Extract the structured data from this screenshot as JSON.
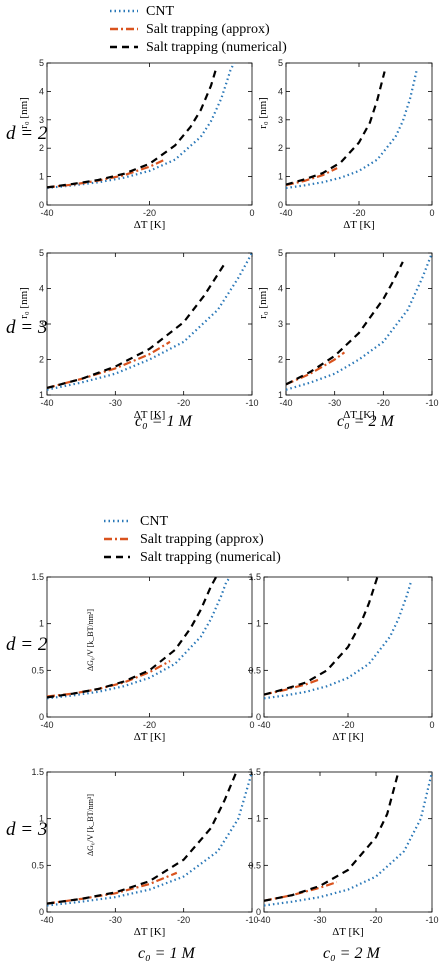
{
  "colors": {
    "CNT": "#2a78b8",
    "approx": "#d9531e",
    "numerical": "#000000"
  },
  "figure_top": {
    "legend": [
      "CNT",
      "Salt trapping (approx)",
      "Salt trapping (numerical)"
    ],
    "row_labels": [
      "d = 2",
      "d = 3"
    ],
    "col_labels": [
      "c₀ = 1 M",
      "c₀ = 2 M"
    ]
  },
  "figure_bottom": {
    "legend": [
      "CNT",
      "Salt trapping (approx)",
      "Salt trapping (numerical)"
    ],
    "row_labels": [
      "d = 2",
      "d = 3"
    ],
    "col_labels": [
      "c₀ = 1 M",
      "c₀ = 2 M"
    ]
  },
  "chart_data": [
    {
      "type": "line",
      "figure": "top",
      "row": "d = 2",
      "column": "c0 = 1 M",
      "xlabel": "ΔT [K]",
      "ylabel": "r₀ [nm]",
      "xlim": [
        -40,
        0
      ],
      "ylim": [
        0,
        5
      ],
      "xticks": [
        "-40",
        "-20",
        "0"
      ],
      "yticks": [
        "0",
        "1",
        "2",
        "3",
        "4",
        "5"
      ],
      "series": [
        {
          "name": "CNT",
          "x": [
            -40,
            -35,
            -30,
            -25,
            -20,
            -15,
            -10,
            -8,
            -6,
            -5,
            -4.2,
            -3.5
          ],
          "y": [
            0.6,
            0.69,
            0.8,
            0.96,
            1.2,
            1.6,
            2.4,
            2.95,
            3.75,
            4.3,
            4.75,
            5.0
          ]
        },
        {
          "name": "Salt trapping (approx)",
          "x": [
            -40,
            -35,
            -30,
            -25,
            -20,
            -17
          ],
          "y": [
            0.62,
            0.72,
            0.86,
            1.05,
            1.35,
            1.6
          ]
        },
        {
          "name": "Salt trapping (numerical)",
          "x": [
            -40,
            -35,
            -30,
            -25,
            -20,
            -15,
            -12,
            -10,
            -8,
            -7
          ],
          "y": [
            0.62,
            0.74,
            0.88,
            1.1,
            1.45,
            2.1,
            2.75,
            3.35,
            4.2,
            4.8
          ]
        }
      ]
    },
    {
      "type": "line",
      "figure": "top",
      "row": "d = 2",
      "column": "c0 = 2 M",
      "xlabel": "ΔT [K]",
      "ylabel": "r₀ [nm]",
      "xlim": [
        -40,
        0
      ],
      "ylim": [
        0,
        5
      ],
      "xticks": [
        "-40",
        "-20",
        "0"
      ],
      "yticks": [
        "0",
        "1",
        "2",
        "3",
        "4",
        "5"
      ],
      "series": [
        {
          "name": "CNT",
          "x": [
            -40,
            -35,
            -30,
            -25,
            -20,
            -15,
            -10,
            -8,
            -6,
            -5,
            -4.2
          ],
          "y": [
            0.6,
            0.69,
            0.8,
            0.96,
            1.2,
            1.6,
            2.4,
            2.95,
            3.75,
            4.3,
            4.75
          ]
        },
        {
          "name": "Salt trapping (approx)",
          "x": [
            -40,
            -35,
            -30,
            -26
          ],
          "y": [
            0.7,
            0.85,
            1.05,
            1.3
          ]
        },
        {
          "name": "Salt trapping (numerical)",
          "x": [
            -40,
            -35,
            -30,
            -25,
            -20,
            -17,
            -15,
            -13
          ],
          "y": [
            0.72,
            0.9,
            1.12,
            1.5,
            2.2,
            2.9,
            3.7,
            4.7
          ]
        }
      ]
    },
    {
      "type": "line",
      "figure": "top",
      "row": "d = 3",
      "column": "c0 = 1 M",
      "xlabel": "ΔT [K]",
      "ylabel": "r₀ [nm]",
      "xlim": [
        -40,
        -10
      ],
      "ylim": [
        1,
        5
      ],
      "xticks": [
        "-40",
        "-30",
        "-20",
        "-10"
      ],
      "yticks": [
        "1",
        "2",
        "3",
        "4",
        "5"
      ],
      "series": [
        {
          "name": "CNT",
          "x": [
            -40,
            -35,
            -30,
            -25,
            -20,
            -15,
            -12,
            -10
          ],
          "y": [
            1.15,
            1.35,
            1.6,
            2.0,
            2.5,
            3.4,
            4.3,
            5.0
          ]
        },
        {
          "name": "Salt trapping (approx)",
          "x": [
            -40,
            -35,
            -30,
            -25,
            -22
          ],
          "y": [
            1.2,
            1.45,
            1.75,
            2.15,
            2.5
          ]
        },
        {
          "name": "Salt trapping (numerical)",
          "x": [
            -40,
            -35,
            -30,
            -25,
            -20,
            -17,
            -14
          ],
          "y": [
            1.2,
            1.45,
            1.8,
            2.3,
            3.05,
            3.8,
            4.7
          ]
        }
      ]
    },
    {
      "type": "line",
      "figure": "top",
      "row": "d = 3",
      "column": "c0 = 2 M",
      "xlabel": "ΔT [K]",
      "ylabel": "r₀ [nm]",
      "xlim": [
        -40,
        -10
      ],
      "ylim": [
        1,
        5
      ],
      "xticks": [
        "-40",
        "-30",
        "-20",
        "-10"
      ],
      "yticks": [
        "1",
        "2",
        "3",
        "4",
        "5"
      ],
      "series": [
        {
          "name": "CNT",
          "x": [
            -40,
            -35,
            -30,
            -25,
            -20,
            -15,
            -12,
            -10
          ],
          "y": [
            1.15,
            1.35,
            1.6,
            2.0,
            2.5,
            3.4,
            4.3,
            5.0
          ]
        },
        {
          "name": "Salt trapping (approx)",
          "x": [
            -40,
            -35,
            -30,
            -28
          ],
          "y": [
            1.3,
            1.6,
            2.0,
            2.2
          ]
        },
        {
          "name": "Salt trapping (numerical)",
          "x": [
            -40,
            -35,
            -30,
            -25,
            -20,
            -18,
            -16
          ],
          "y": [
            1.3,
            1.65,
            2.1,
            2.75,
            3.7,
            4.2,
            4.75
          ]
        }
      ]
    },
    {
      "type": "line",
      "figure": "bottom",
      "row": "d = 2",
      "column": "c0 = 1 M",
      "xlabel": "ΔT [K]",
      "ylabel": "ΔG₀ / V [k_B T / nm²]",
      "xlim": [
        -40,
        0
      ],
      "ylim": [
        0,
        1.5
      ],
      "xticks": [
        "-40",
        "-20",
        "0"
      ],
      "yticks": [
        "0",
        "0.5",
        "1",
        "1.5"
      ],
      "series": [
        {
          "name": "CNT",
          "x": [
            -40,
            -35,
            -30,
            -25,
            -20,
            -15,
            -10,
            -8,
            -6,
            -5,
            -4.2
          ],
          "y": [
            0.2,
            0.23,
            0.27,
            0.33,
            0.42,
            0.57,
            0.86,
            1.05,
            1.3,
            1.45,
            1.5
          ]
        },
        {
          "name": "Salt trapping (approx)",
          "x": [
            -40,
            -35,
            -30,
            -25,
            -20,
            -16
          ],
          "y": [
            0.22,
            0.25,
            0.3,
            0.37,
            0.48,
            0.6
          ]
        },
        {
          "name": "Salt trapping (numerical)",
          "x": [
            -40,
            -35,
            -30,
            -25,
            -20,
            -15,
            -12,
            -10,
            -8,
            -7
          ],
          "y": [
            0.21,
            0.25,
            0.3,
            0.38,
            0.5,
            0.72,
            0.95,
            1.15,
            1.4,
            1.5
          ]
        }
      ]
    },
    {
      "type": "line",
      "figure": "bottom",
      "row": "d = 2",
      "column": "c0 = 2 M",
      "xlabel": "ΔT [K]",
      "ylabel": "",
      "xlim": [
        -40,
        0
      ],
      "ylim": [
        0,
        1.5
      ],
      "xticks": [
        "-40",
        "-20",
        "0"
      ],
      "yticks": [
        "0",
        "0.5",
        "1",
        "1.5"
      ],
      "series": [
        {
          "name": "CNT",
          "x": [
            -40,
            -35,
            -30,
            -25,
            -20,
            -15,
            -10,
            -8,
            -6,
            -5
          ],
          "y": [
            0.2,
            0.23,
            0.27,
            0.33,
            0.42,
            0.57,
            0.86,
            1.05,
            1.3,
            1.45
          ]
        },
        {
          "name": "Salt trapping (approx)",
          "x": [
            -40,
            -35,
            -30,
            -27
          ],
          "y": [
            0.24,
            0.29,
            0.35,
            0.4
          ]
        },
        {
          "name": "Salt trapping (numerical)",
          "x": [
            -40,
            -35,
            -30,
            -25,
            -20,
            -17,
            -15,
            -13
          ],
          "y": [
            0.24,
            0.3,
            0.37,
            0.5,
            0.75,
            1.0,
            1.22,
            1.5
          ]
        }
      ]
    },
    {
      "type": "line",
      "figure": "bottom",
      "row": "d = 3",
      "column": "c0 = 1 M",
      "xlabel": "ΔT [K]",
      "ylabel": "ΔG₀ / V [k_B T / nm³]",
      "xlim": [
        -40,
        -10
      ],
      "ylim": [
        0,
        1.5
      ],
      "xticks": [
        "-40",
        "-30",
        "-20",
        "-10"
      ],
      "yticks": [
        "0",
        "0.5",
        "1",
        "1.5"
      ],
      "series": [
        {
          "name": "CNT",
          "x": [
            -40,
            -35,
            -30,
            -25,
            -20,
            -15,
            -12,
            -10
          ],
          "y": [
            0.07,
            0.11,
            0.16,
            0.24,
            0.38,
            0.65,
            1.0,
            1.5
          ]
        },
        {
          "name": "Salt trapping (approx)",
          "x": [
            -40,
            -35,
            -30,
            -25,
            -21
          ],
          "y": [
            0.09,
            0.14,
            0.2,
            0.3,
            0.42
          ]
        },
        {
          "name": "Salt trapping (numerical)",
          "x": [
            -40,
            -35,
            -30,
            -25,
            -20,
            -16,
            -14,
            -12
          ],
          "y": [
            0.09,
            0.14,
            0.21,
            0.33,
            0.56,
            0.9,
            1.2,
            1.55
          ]
        }
      ]
    },
    {
      "type": "line",
      "figure": "bottom",
      "row": "d = 3",
      "column": "c0 = 2 M",
      "xlabel": "ΔT [K]",
      "ylabel": "",
      "xlim": [
        -40,
        -10
      ],
      "ylim": [
        0,
        1.5
      ],
      "xticks": [
        "-40",
        "-30",
        "-20",
        "-10"
      ],
      "yticks": [
        "0",
        "0.5",
        "1",
        "1.5"
      ],
      "series": [
        {
          "name": "CNT",
          "x": [
            -40,
            -35,
            -30,
            -25,
            -20,
            -15,
            -12,
            -10
          ],
          "y": [
            0.07,
            0.11,
            0.16,
            0.24,
            0.38,
            0.65,
            1.0,
            1.5
          ]
        },
        {
          "name": "Salt trapping (approx)",
          "x": [
            -40,
            -35,
            -30,
            -27
          ],
          "y": [
            0.12,
            0.18,
            0.26,
            0.32
          ]
        },
        {
          "name": "Salt trapping (numerical)",
          "x": [
            -40,
            -35,
            -30,
            -25,
            -20,
            -18,
            -16
          ],
          "y": [
            0.12,
            0.18,
            0.28,
            0.45,
            0.8,
            1.05,
            1.5
          ]
        }
      ]
    }
  ]
}
